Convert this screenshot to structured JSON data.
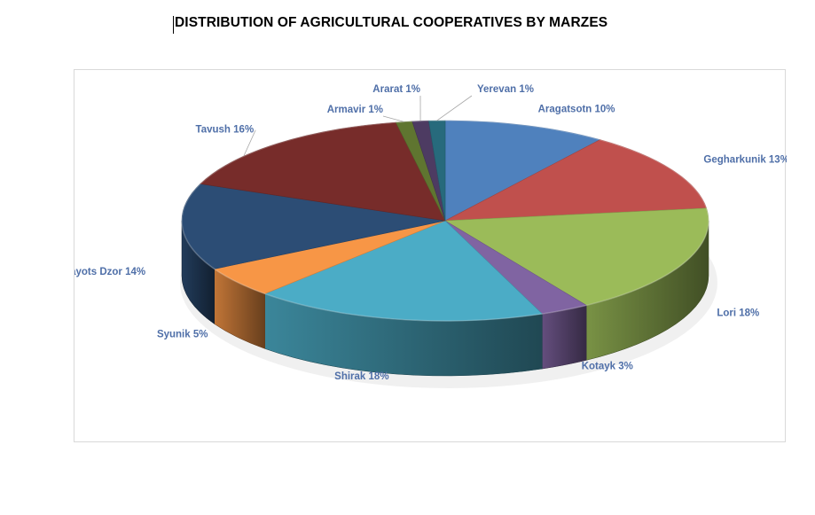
{
  "document": {
    "title": "DISTRIBUTION OF AGRICULTURAL COOPERATIVES BY MARZES"
  },
  "chart_data": {
    "type": "pie",
    "style": "3d",
    "legend": "none",
    "label_color": "#4f6fa8",
    "slices": [
      {
        "label": "Aragatsotn",
        "value": 10,
        "display": "10%",
        "color": "#4f81bd"
      },
      {
        "label": "Gegharkunik",
        "value": 13,
        "display": "13%",
        "color": "#c0504d"
      },
      {
        "label": "Lori",
        "value": 18,
        "display": "18%",
        "color": "#9bbb59"
      },
      {
        "label": "Kotayk",
        "value": 3,
        "display": "3%",
        "color": "#8064a2"
      },
      {
        "label": "Shirak",
        "value": 18,
        "display": "18%",
        "color": "#4bacc6"
      },
      {
        "label": "Syunik",
        "value": 5,
        "display": "5%",
        "color": "#f79646"
      },
      {
        "label": "Vayots Dzor",
        "value": 14,
        "display": "14%",
        "color": "#2c4d75"
      },
      {
        "label": "Tavush",
        "value": 16,
        "display": "16%",
        "color": "#772c2a"
      },
      {
        "label": "Armavir",
        "value": 1,
        "display": "1%",
        "color": "#5f7530"
      },
      {
        "label": "Ararat",
        "value": 1,
        "display": "1%",
        "color": "#4d3b62"
      },
      {
        "label": "Yerevan",
        "value": 1,
        "display": "1%",
        "color": "#276a7c"
      }
    ]
  }
}
